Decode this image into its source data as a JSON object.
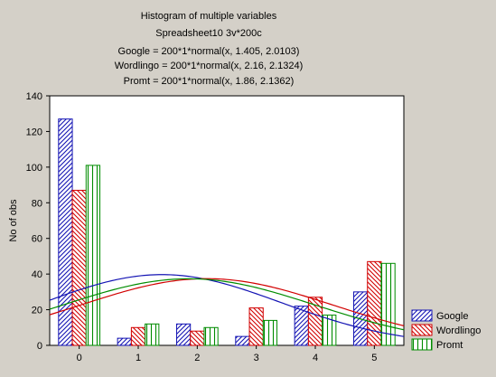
{
  "chart_data": {
    "type": "bar",
    "title": "Histogram of multiple variables",
    "subtitle": "Spreadsheet10 3v*200c",
    "formulas": [
      "Google = 200*1*normal(x, 1.405, 2.0103)",
      "Wordlingo = 200*1*normal(x, 2.16, 2.1324)",
      "Promt = 200*1*normal(x, 1.86, 2.1362)"
    ],
    "xlabel": "",
    "ylabel": "No of obs",
    "categories": [
      "0",
      "1",
      "2",
      "3",
      "4",
      "5"
    ],
    "x_values": [
      0,
      1,
      2,
      3,
      4,
      5
    ],
    "xlim": [
      -0.5,
      5.5
    ],
    "ylim": [
      0,
      140
    ],
    "yticks": [
      0,
      20,
      40,
      60,
      80,
      100,
      120,
      140
    ],
    "grid": false,
    "legend_position": "right-bottom",
    "series": [
      {
        "name": "Google",
        "values": [
          127,
          4,
          12,
          5,
          22,
          30
        ],
        "color": "#1414b4",
        "pattern": "hatch-forward",
        "fit": {
          "mean": 1.405,
          "sd": 2.0103
        }
      },
      {
        "name": "Wordlingo",
        "values": [
          87,
          10,
          8,
          21,
          27,
          47
        ],
        "color": "#d20000",
        "pattern": "hatch-back",
        "fit": {
          "mean": 2.16,
          "sd": 2.1324
        }
      },
      {
        "name": "Promt",
        "values": [
          101,
          12,
          10,
          14,
          17,
          46
        ],
        "color": "#008c00",
        "pattern": "vertical-lines",
        "fit": {
          "mean": 1.86,
          "sd": 2.1362
        }
      }
    ]
  }
}
